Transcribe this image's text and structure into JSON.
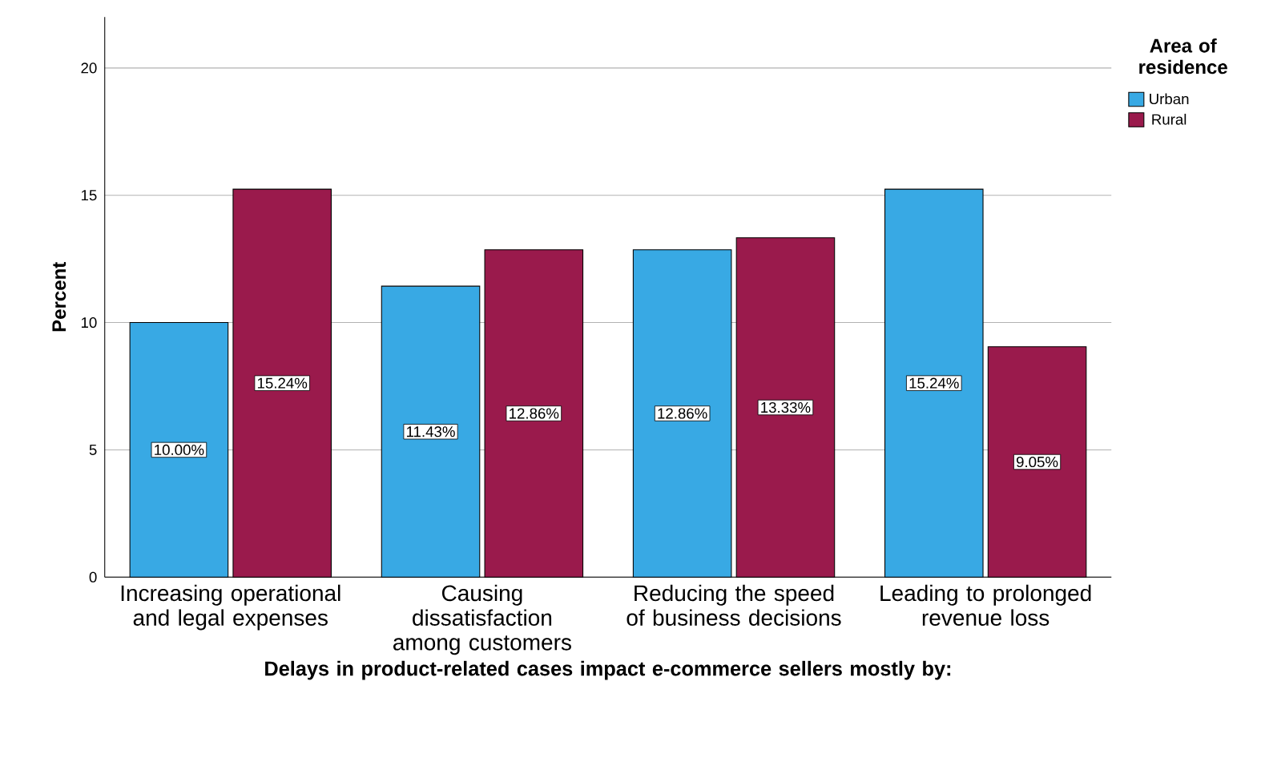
{
  "chart_data": {
    "type": "bar",
    "xlabel": "Delays in product-related cases impact e-commerce sellers mostly by:",
    "ylabel": "Percent",
    "legend_title": "Area of residence",
    "categories": [
      "Increasing operational and legal expenses",
      "Causing dissatisfaction among customers",
      "Reducing the speed of business decisions",
      "Leading to prolonged revenue loss"
    ],
    "series": [
      {
        "name": "Urban",
        "color": "#38a9e4",
        "values": [
          10.0,
          11.43,
          12.86,
          15.24
        ],
        "value_labels": [
          "10.00%",
          "11.43%",
          "12.86%",
          "15.24%"
        ]
      },
      {
        "name": "Rural",
        "color": "#9a1a4c",
        "values": [
          15.24,
          12.86,
          13.33,
          9.05
        ],
        "value_labels": [
          "15.24%",
          "12.86%",
          "13.33%",
          "9.05%"
        ]
      }
    ],
    "ylim": [
      0,
      22
    ],
    "yticks": [
      0,
      5,
      10,
      15,
      20
    ],
    "grid": "y",
    "legend": "top right"
  }
}
